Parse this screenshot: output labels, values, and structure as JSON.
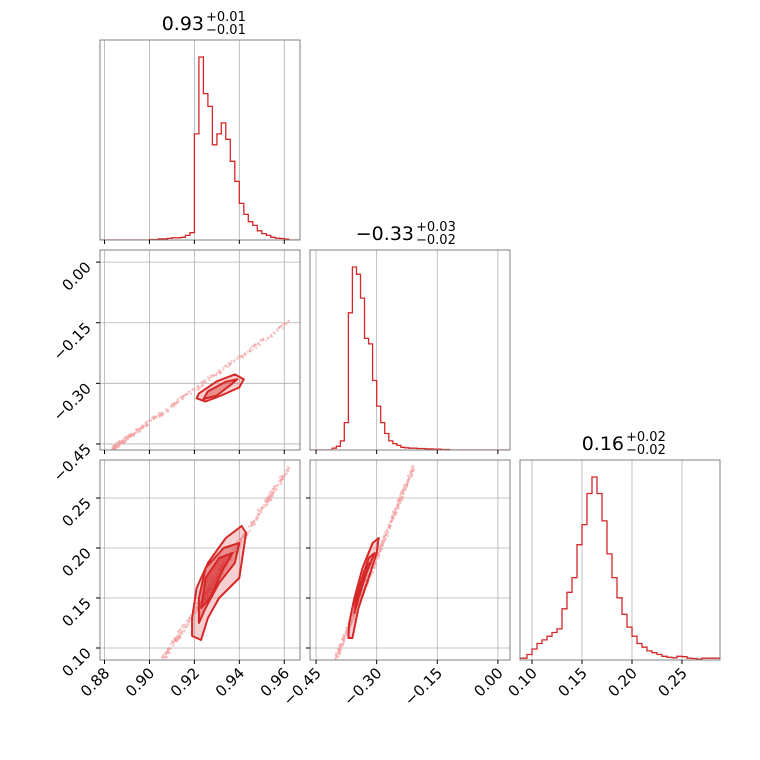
{
  "colors": {
    "accent": "#d62728",
    "grid": "#b0b0b0",
    "frame": "#808080",
    "points": "#f4a0a2"
  },
  "chart_data": {
    "type": "corner",
    "parameters": [
      {
        "median": "0.93",
        "plus": "+0.01",
        "minus": "−0.01",
        "range": [
          0.878,
          0.967
        ],
        "ticks": [
          0.88,
          0.9,
          0.92,
          0.94,
          0.96
        ],
        "tick_labels": [
          "0.88",
          "0.90",
          "0.92",
          "0.94",
          "0.96"
        ]
      },
      {
        "median": "−0.33",
        "plus": "+0.03",
        "minus": "−0.02",
        "range": [
          -0.465,
          0.03
        ],
        "ticks": [
          -0.45,
          -0.3,
          -0.15,
          0.0
        ],
        "tick_labels": [
          "−0.45",
          "−0.30",
          "−0.15",
          "0.00"
        ]
      },
      {
        "median": "0.16",
        "plus": "+0.02",
        "minus": "−0.02",
        "range": [
          0.088,
          0.288
        ],
        "ticks": [
          0.1,
          0.15,
          0.2,
          0.25
        ],
        "tick_labels": [
          "0.10",
          "0.15",
          "0.20",
          "0.25"
        ]
      }
    ],
    "histograms": [
      {
        "param": 0,
        "edges": [
          0.878,
          0.9,
          0.902,
          0.904,
          0.906,
          0.908,
          0.91,
          0.912,
          0.914,
          0.916,
          0.918,
          0.92,
          0.922,
          0.924,
          0.926,
          0.928,
          0.93,
          0.932,
          0.934,
          0.936,
          0.938,
          0.94,
          0.942,
          0.944,
          0.946,
          0.948,
          0.95,
          0.952,
          0.954,
          0.956,
          0.958,
          0.96,
          0.962,
          0.967
        ],
        "counts": [
          0,
          0.3,
          0.3,
          0.6,
          0.6,
          0.9,
          1.2,
          1.2,
          1.5,
          2.5,
          4,
          58,
          100,
          80,
          73,
          52,
          58,
          64,
          55,
          43,
          32,
          20,
          14,
          10,
          8,
          5,
          3.5,
          2.5,
          1.5,
          1,
          0.8,
          0.5,
          0
        ]
      },
      {
        "param": 1,
        "edges": [
          -0.465,
          -0.41,
          -0.4,
          -0.39,
          -0.38,
          -0.37,
          -0.36,
          -0.35,
          -0.34,
          -0.33,
          -0.32,
          -0.31,
          -0.3,
          -0.29,
          -0.28,
          -0.27,
          -0.26,
          -0.25,
          -0.24,
          -0.23,
          -0.22,
          -0.2,
          -0.18,
          -0.16,
          -0.14,
          -0.12,
          0.03
        ],
        "counts": [
          0,
          1,
          2,
          5,
          15,
          75,
          100,
          96,
          83,
          61,
          58,
          38,
          24,
          15,
          9,
          5,
          3.5,
          2.5,
          1.5,
          1.2,
          1,
          0.8,
          0.6,
          0.5,
          0.3,
          0
        ]
      },
      {
        "param": 2,
        "edges": [
          0.088,
          0.095,
          0.1,
          0.105,
          0.11,
          0.115,
          0.12,
          0.125,
          0.13,
          0.135,
          0.14,
          0.145,
          0.15,
          0.155,
          0.16,
          0.165,
          0.17,
          0.175,
          0.18,
          0.185,
          0.19,
          0.195,
          0.2,
          0.205,
          0.21,
          0.215,
          0.22,
          0.225,
          0.23,
          0.235,
          0.24,
          0.245,
          0.25,
          0.255,
          0.26,
          0.265,
          0.27,
          0.288
        ],
        "counts": [
          1,
          3,
          6,
          9,
          11,
          13,
          15,
          17,
          28,
          37,
          45,
          63,
          74,
          91,
          100,
          91,
          76,
          58,
          45,
          34,
          25,
          18,
          13,
          9,
          7,
          5,
          4,
          3,
          2,
          1.5,
          1.2,
          2,
          1.8,
          1,
          0.8,
          0.5,
          1
        ]
      }
    ],
    "pairs": [
      {
        "x": 0,
        "y": 1,
        "contours": [
          [
            [
              0.921,
              -0.337
            ],
            [
              0.925,
              -0.345
            ],
            [
              0.932,
              -0.33
            ],
            [
              0.94,
              -0.31
            ],
            [
              0.942,
              -0.29
            ],
            [
              0.938,
              -0.278
            ],
            [
              0.93,
              -0.295
            ],
            [
              0.922,
              -0.325
            ]
          ],
          [
            [
              0.924,
              -0.339
            ],
            [
              0.93,
              -0.33
            ],
            [
              0.937,
              -0.3
            ],
            [
              0.939,
              -0.29
            ],
            [
              0.934,
              -0.296
            ],
            [
              0.926,
              -0.32
            ]
          ]
        ],
        "cloud": {
          "count": 320,
          "x_from": 0.884,
          "y_from": -0.46,
          "x_to": 0.964,
          "y_to": -0.14,
          "curve": 1.8,
          "spread": 0.018
        }
      },
      {
        "x": 0,
        "y": 2,
        "contours": [
          [
            [
              0.919,
              0.112
            ],
            [
              0.923,
              0.108
            ],
            [
              0.926,
              0.13
            ],
            [
              0.931,
              0.15
            ],
            [
              0.94,
              0.17
            ],
            [
              0.943,
              0.215
            ],
            [
              0.941,
              0.222
            ],
            [
              0.934,
              0.21
            ],
            [
              0.926,
              0.185
            ],
            [
              0.921,
              0.16
            ],
            [
              0.919,
              0.13
            ]
          ],
          [
            [
              0.922,
              0.125
            ],
            [
              0.925,
              0.14
            ],
            [
              0.931,
              0.165
            ],
            [
              0.938,
              0.185
            ],
            [
              0.94,
              0.205
            ],
            [
              0.933,
              0.2
            ],
            [
              0.925,
              0.18
            ],
            [
              0.922,
              0.15
            ]
          ],
          [
            [
              0.923,
              0.14
            ],
            [
              0.927,
              0.15
            ],
            [
              0.933,
              0.18
            ],
            [
              0.937,
              0.195
            ],
            [
              0.931,
              0.19
            ],
            [
              0.925,
              0.17
            ]
          ]
        ],
        "cloud": {
          "count": 420,
          "x_from": 0.905,
          "y_from": 0.085,
          "x_to": 0.962,
          "y_to": 0.28,
          "curve": 1.0,
          "spread": 0.025
        }
      },
      {
        "x": 1,
        "y": 2,
        "contours": [
          [
            [
              -0.37,
              0.11
            ],
            [
              -0.36,
              0.11
            ],
            [
              -0.345,
              0.14
            ],
            [
              -0.32,
              0.17
            ],
            [
              -0.3,
              0.195
            ],
            [
              -0.295,
              0.21
            ],
            [
              -0.31,
              0.205
            ],
            [
              -0.335,
              0.18
            ],
            [
              -0.355,
              0.15
            ],
            [
              -0.368,
              0.125
            ]
          ],
          [
            [
              -0.355,
              0.135
            ],
            [
              -0.345,
              0.15
            ],
            [
              -0.325,
              0.175
            ],
            [
              -0.305,
              0.195
            ],
            [
              -0.32,
              0.19
            ],
            [
              -0.34,
              0.165
            ],
            [
              -0.352,
              0.148
            ]
          ],
          [
            [
              -0.35,
              0.145
            ],
            [
              -0.335,
              0.165
            ],
            [
              -0.318,
              0.185
            ],
            [
              -0.33,
              0.178
            ],
            [
              -0.345,
              0.158
            ]
          ]
        ],
        "cloud": {
          "count": 420,
          "x_from": -0.4,
          "y_from": 0.09,
          "x_to": -0.21,
          "y_to": 0.28,
          "curve": 1.1,
          "spread": 0.022
        }
      }
    ]
  }
}
